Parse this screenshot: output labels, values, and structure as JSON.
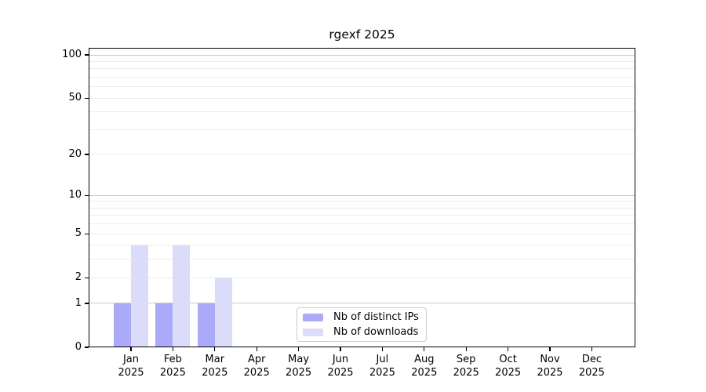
{
  "title": "rgexf 2025",
  "chart_data": {
    "type": "bar",
    "title": "rgexf 2025",
    "scale": "log1p",
    "ylim": [
      0,
      100
    ],
    "y_ticks": [
      0,
      1,
      2,
      5,
      10,
      20,
      50,
      100
    ],
    "gridlines": {
      "minor": [
        2,
        3,
        4,
        5,
        6,
        7,
        8,
        9,
        20,
        30,
        40,
        50,
        60,
        70,
        80,
        90
      ],
      "major": [
        1,
        10,
        100
      ]
    },
    "categories": [
      {
        "month": "Jan",
        "year": "2025"
      },
      {
        "month": "Feb",
        "year": "2025"
      },
      {
        "month": "Mar",
        "year": "2025"
      },
      {
        "month": "Apr",
        "year": "2025"
      },
      {
        "month": "May",
        "year": "2025"
      },
      {
        "month": "Jun",
        "year": "2025"
      },
      {
        "month": "Jul",
        "year": "2025"
      },
      {
        "month": "Aug",
        "year": "2025"
      },
      {
        "month": "Sep",
        "year": "2025"
      },
      {
        "month": "Oct",
        "year": "2025"
      },
      {
        "month": "Nov",
        "year": "2025"
      },
      {
        "month": "Dec",
        "year": "2025"
      }
    ],
    "series": [
      {
        "name": "Nb of distinct IPs",
        "key": "distinct-ips",
        "color": "#aaaaf8",
        "values": [
          1,
          1,
          1,
          0,
          0,
          0,
          0,
          0,
          0,
          0,
          0,
          0
        ]
      },
      {
        "name": "Nb of downloads",
        "key": "downloads",
        "color": "#dbdbfa",
        "values": [
          4,
          4,
          2,
          0,
          0,
          0,
          0,
          0,
          0,
          0,
          0,
          0
        ]
      }
    ],
    "legend_position": "lower center, inside plot"
  },
  "legend": {
    "items": [
      {
        "label": "Nb of distinct IPs",
        "color": "#aaaaf8"
      },
      {
        "label": "Nb of downloads",
        "color": "#dbdbfa"
      }
    ]
  },
  "colors": {
    "background": "#ffffff",
    "axis": "#000000",
    "grid_minor": "#ececec",
    "grid_major": "#c9c9c9",
    "legend_border": "#cccccc",
    "bar_distinct_ips": "#aaaaf8",
    "bar_downloads": "#dbdbfa"
  }
}
